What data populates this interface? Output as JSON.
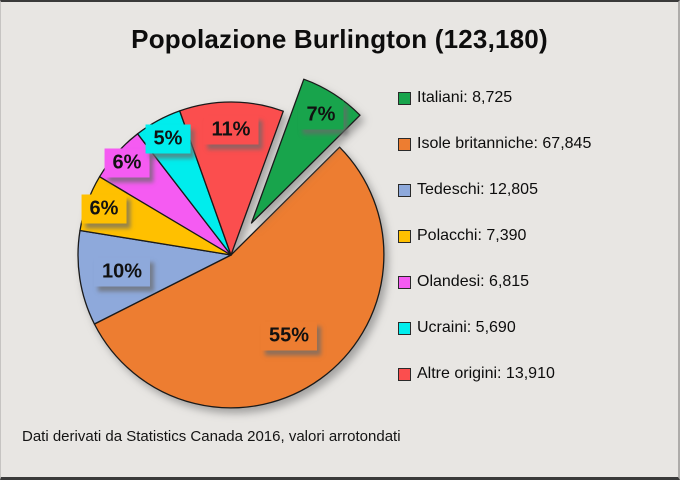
{
  "page": {
    "background": "#E8E6E3"
  },
  "chart_data": {
    "type": "pie",
    "title": "Popolazione Burlington (123,180)",
    "total_text": "123,180",
    "source_note": "Dati derivati da Statistics Canada 2016, valori arrotondati",
    "legend_position": "right",
    "start_angle_deg": 20,
    "exploded_slice": "Italiani",
    "slices": [
      {
        "label": "Italiani",
        "value": 8725,
        "value_text": "8,725",
        "percent": 7,
        "percent_text": "7%",
        "color": "#18A44C",
        "exploded": true
      },
      {
        "label": "Isole britanniche",
        "value": 67845,
        "value_text": "67,845",
        "percent": 55,
        "percent_text": "55%",
        "color": "#ED7D31",
        "exploded": false
      },
      {
        "label": "Tedeschi",
        "value": 12805,
        "value_text": "12,805",
        "percent": 10,
        "percent_text": "10%",
        "color": "#8EA9DB",
        "exploded": false
      },
      {
        "label": "Polacchi",
        "value": 7390,
        "value_text": "7,390",
        "percent": 6,
        "percent_text": "6%",
        "color": "#FFC000",
        "exploded": false
      },
      {
        "label": "Olandesi",
        "value": 6815,
        "value_text": "6,815",
        "percent": 6,
        "percent_text": "6%",
        "color": "#F55BF2",
        "exploded": false
      },
      {
        "label": "Ucraini",
        "value": 5690,
        "value_text": "5,690",
        "percent": 5,
        "percent_text": "5%",
        "color": "#00EDED",
        "exploded": false
      },
      {
        "label": "Altre origini",
        "value": 13910,
        "value_text": "13,910",
        "percent": 11,
        "percent_text": "11%",
        "color": "#FB4E4E",
        "exploded": false
      }
    ]
  }
}
